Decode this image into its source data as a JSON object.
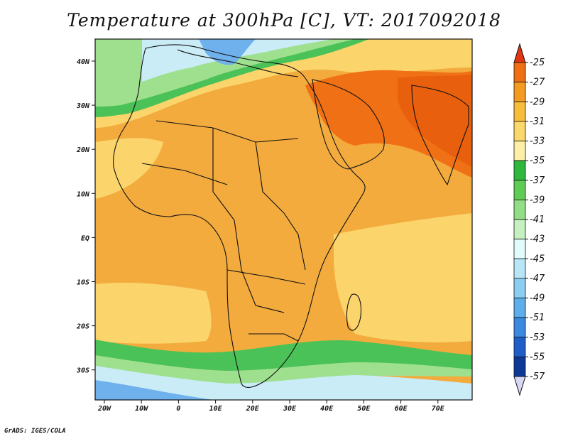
{
  "title": "Temperature at 300hPa [C], VT: 2017092018",
  "credit": "GrADS: IGES/COLA",
  "axes": {
    "lon_labels": [
      "20W",
      "10W",
      "0",
      "10E",
      "20E",
      "30E",
      "40E",
      "50E",
      "60E",
      "70E"
    ],
    "lat_labels": [
      "40N",
      "30N",
      "20N",
      "10N",
      "EQ",
      "10S",
      "20S",
      "30S"
    ]
  },
  "colorbar": {
    "labels": [
      "-25",
      "-27",
      "-29",
      "-31",
      "-33",
      "-35",
      "-37",
      "-39",
      "-41",
      "-43",
      "-45",
      "-47",
      "-49",
      "-51",
      "-53",
      "-55",
      "-57"
    ],
    "colors": [
      "#e8380b",
      "#f06e14",
      "#f59b22",
      "#f9bd3c",
      "#fbd86b",
      "#fdf0a6",
      "#2fb83c",
      "#5fcd55",
      "#92de86",
      "#c5f0bf",
      "#e2fbfb",
      "#b8e6f7",
      "#8ccdf2",
      "#5daeea",
      "#3a88e0",
      "#1f5ec8",
      "#0e3796",
      "#081d5e"
    ],
    "low_arrow_color": "#d8d7f6",
    "high_arrow_color": "#e03510"
  },
  "map": {
    "background_color": "#f3ab3e",
    "ocean_colors": {
      "cold_south": "#6fb1ec",
      "cool_south": "#c9ecf7",
      "green_bands": "#4bc257",
      "light_green": "#9fe08f",
      "warm_yellow": "#fbd56b",
      "hot_orange": "#f07015",
      "hottest": "#e85f0e"
    }
  }
}
